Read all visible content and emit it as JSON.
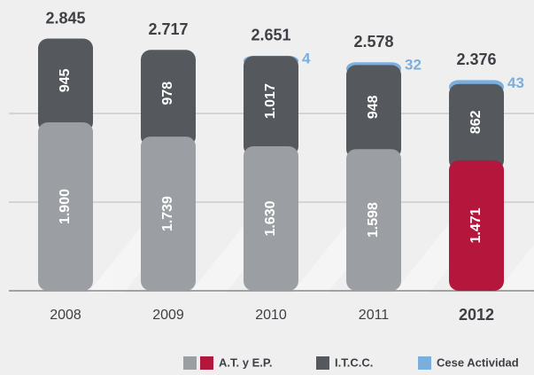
{
  "chart_data": {
    "type": "stacked_bar",
    "categories": [
      "2008",
      "2009",
      "2010",
      "2011",
      "2012"
    ],
    "series": [
      {
        "name": "A.T. y E.P.",
        "color": "#9b9ea2",
        "colors": [
          "#9b9ea2",
          "#9b9ea2",
          "#9b9ea2",
          "#9b9ea2",
          "#b5173c"
        ],
        "values": [
          1900,
          1739,
          1630,
          1598,
          1471
        ],
        "value_labels": [
          "1.900",
          "1.739",
          "1.630",
          "1.598",
          "1.471"
        ]
      },
      {
        "name": "I.T.C.C.",
        "color": "#55585c",
        "values": [
          945,
          978,
          1017,
          948,
          862
        ],
        "value_labels": [
          "945",
          "978",
          "1.017",
          "948",
          "862"
        ]
      },
      {
        "name": "Cese Actividad",
        "color": "#7aaedd",
        "values": [
          null,
          null,
          4,
          32,
          43
        ]
      }
    ],
    "totals": {
      "values": [
        2845,
        2717,
        2651,
        2578,
        2376
      ],
      "value_labels": [
        "2.845",
        "2.717",
        "2.651",
        "2.578",
        "2.376"
      ]
    },
    "ylim": [
      0,
      3000
    ],
    "yticks": [
      0,
      1000,
      2000
    ],
    "grid": true
  }
}
